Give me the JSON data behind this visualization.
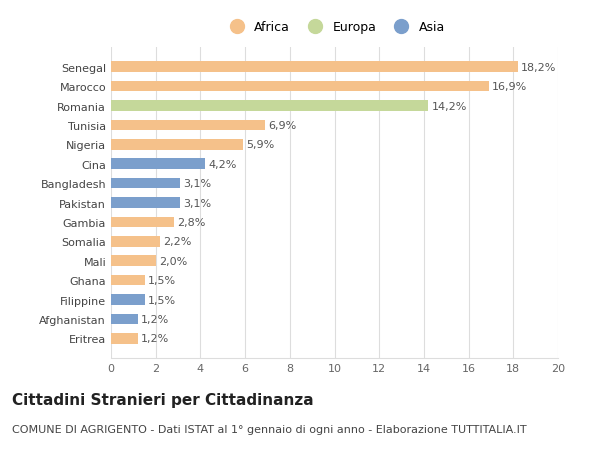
{
  "categories": [
    "Eritrea",
    "Afghanistan",
    "Filippine",
    "Ghana",
    "Mali",
    "Somalia",
    "Gambia",
    "Pakistan",
    "Bangladesh",
    "Cina",
    "Nigeria",
    "Tunisia",
    "Romania",
    "Marocco",
    "Senegal"
  ],
  "values": [
    1.2,
    1.2,
    1.5,
    1.5,
    2.0,
    2.2,
    2.8,
    3.1,
    3.1,
    4.2,
    5.9,
    6.9,
    14.2,
    16.9,
    18.2
  ],
  "continents": [
    "Africa",
    "Asia",
    "Asia",
    "Africa",
    "Africa",
    "Africa",
    "Africa",
    "Asia",
    "Asia",
    "Asia",
    "Africa",
    "Africa",
    "Europa",
    "Africa",
    "Africa"
  ],
  "labels": [
    "1,2%",
    "1,2%",
    "1,5%",
    "1,5%",
    "2,0%",
    "2,2%",
    "2,8%",
    "3,1%",
    "3,1%",
    "4,2%",
    "5,9%",
    "6,9%",
    "14,2%",
    "16,9%",
    "18,2%"
  ],
  "color_africa": "#F5C18A",
  "color_europa": "#C5D89A",
  "color_asia": "#7B9FCC",
  "title": "Cittadini Stranieri per Cittadinanza",
  "subtitle": "COMUNE DI AGRIGENTO - Dati ISTAT al 1° gennaio di ogni anno - Elaborazione TUTTITALIA.IT",
  "xlim": [
    0,
    20
  ],
  "xticks": [
    0,
    2,
    4,
    6,
    8,
    10,
    12,
    14,
    16,
    18,
    20
  ],
  "bg_color": "#ffffff",
  "grid_color": "#dddddd",
  "bar_height": 0.55,
  "label_fontsize": 8,
  "tick_fontsize": 8,
  "title_fontsize": 11,
  "subtitle_fontsize": 8
}
